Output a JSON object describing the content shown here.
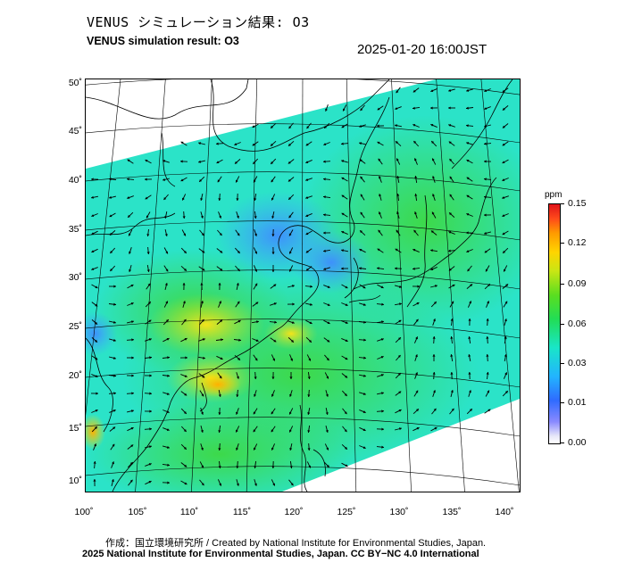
{
  "header": {
    "title_jp": "VENUS シミュレーション結果: O3",
    "title_en": "VENUS simulation result: O3",
    "timestamp": "2025-01-20 16:00JST"
  },
  "map": {
    "lat_labels": [
      "50˚",
      "45˚",
      "40˚",
      "35˚",
      "30˚",
      "25˚",
      "20˚",
      "15˚",
      "10˚"
    ],
    "lon_labels": [
      "100˚",
      "105˚",
      "110˚",
      "115˚",
      "120˚",
      "125˚",
      "130˚",
      "135˚",
      "140˚"
    ],
    "field": "O3 concentration with wind vectors"
  },
  "colorbar": {
    "unit": "ppm",
    "labels": [
      "0.15",
      "0.12",
      "0.09",
      "0.06",
      "0.03",
      "0.01",
      "0.00"
    ],
    "colors": [
      "#e0141a",
      "#ff9a00",
      "#ffd400",
      "#22dd55",
      "#22b4ff",
      "#2f6bff",
      "#ffffff"
    ]
  },
  "footer": {
    "credit_1": "作成：国立環境研究所 / Created by National Institute for Environmental Studies, Japan.",
    "credit_2": "2025 National Institute for Environmental Studies, Japan. CC BY−NC 4.0 International"
  }
}
